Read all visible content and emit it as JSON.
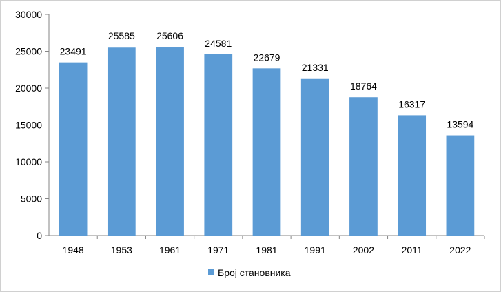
{
  "chart_data": {
    "type": "bar",
    "categories": [
      "1948",
      "1953",
      "1961",
      "1971",
      "1981",
      "1991",
      "2002",
      "2011",
      "2022"
    ],
    "series": [
      {
        "name": "Број становника",
        "values": [
          23491,
          25585,
          25606,
          24581,
          22679,
          21331,
          18764,
          16317,
          13594
        ],
        "color": "#5b9bd5"
      }
    ],
    "yticks": [
      "0",
      "5000",
      "10000",
      "15000",
      "20000",
      "25000",
      "30000"
    ],
    "ylim": [
      0,
      30000
    ],
    "grid": false,
    "legend_position": "bottom",
    "data_labels": [
      "23491",
      "25585",
      "25606",
      "24581",
      "22679",
      "21331",
      "18764",
      "16317",
      "13594"
    ]
  }
}
